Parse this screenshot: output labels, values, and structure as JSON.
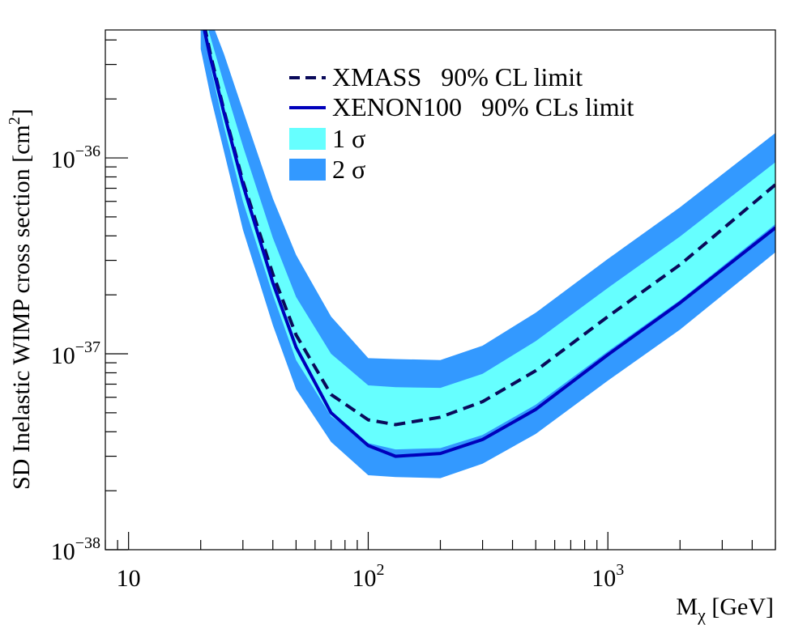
{
  "chart_data": {
    "type": "area",
    "xlabel": {
      "main": "M",
      "sub": "χ",
      "unit": "[GeV]"
    },
    "ylabel": {
      "main": "SD Inelastic WIMP cross section  [cm",
      "sup": "2",
      "close": "]"
    },
    "xscale": "log",
    "yscale": "log",
    "xlim": [
      8,
      5000
    ],
    "ylim": [
      1e-38,
      4.5e-36
    ],
    "x_ticks": [
      {
        "value": 10,
        "label": "10",
        "sup": ""
      },
      {
        "value": 100,
        "label": "10",
        "sup": "2"
      },
      {
        "value": 1000,
        "label": "10",
        "sup": "3"
      }
    ],
    "y_ticks": [
      {
        "value": 1e-38,
        "label": "10",
        "sup": "−38"
      },
      {
        "value": 1e-37,
        "label": "10",
        "sup": "−37"
      },
      {
        "value": 1e-36,
        "label": "10",
        "sup": "−36"
      }
    ],
    "bands": [
      {
        "name": "2 σ",
        "color": "#3399ff",
        "x": [
          20,
          22,
          25,
          30,
          40,
          50,
          70,
          100,
          130,
          200,
          300,
          500,
          1000,
          2000,
          5000
        ],
        "lower": [
          3.6e-36,
          2.05e-36,
          1.08e-36,
          4.3e-37,
          1.4e-37,
          6.6e-38,
          3.55e-38,
          2.4e-38,
          2.35e-38,
          2.32e-38,
          2.75e-38,
          3.9e-38,
          7.3e-38,
          1.33e-37,
          3.3e-37
        ],
        "upper": [
          6.2e-36,
          5.1e-36,
          3.4e-36,
          1.75e-36,
          6.2e-37,
          3.2e-37,
          1.55e-37,
          9.5e-38,
          9.4e-38,
          9.3e-38,
          1.1e-37,
          1.62e-37,
          3.05e-37,
          5.6e-37,
          1.34e-36
        ]
      },
      {
        "name": "1 σ",
        "color": "#66ffff",
        "x": [
          20,
          22,
          25,
          30,
          40,
          50,
          70,
          100,
          130,
          200,
          300,
          500,
          1000,
          2000,
          5000
        ],
        "lower": [
          5.4e-36,
          2.9e-36,
          1.45e-36,
          6e-37,
          2e-37,
          9.3e-38,
          4.8e-38,
          3.5e-38,
          3.25e-38,
          3.3e-38,
          3.85e-38,
          5.5e-38,
          1.03e-37,
          1.88e-37,
          4.6e-37
        ],
        "upper": [
          6.2e-36,
          4.1e-36,
          2.4e-36,
          1.15e-36,
          3.9e-37,
          1.95e-37,
          1e-37,
          6.9e-38,
          6.75e-38,
          6.7e-38,
          7.9e-38,
          1.16e-37,
          2.17e-37,
          3.97e-37,
          9.5e-37
        ]
      }
    ],
    "series": [
      {
        "name": "XMASS   90% CL limit",
        "style": "dashed",
        "color": "#0a0a5a",
        "x": [
          20,
          22,
          25,
          30,
          40,
          50,
          70,
          100,
          130,
          200,
          300,
          500,
          1000,
          2000,
          5000
        ],
        "y": [
          5.8e-36,
          3.35e-36,
          1.75e-36,
          7.6e-37,
          2.55e-37,
          1.25e-37,
          6.2e-38,
          4.6e-38,
          4.35e-38,
          4.75e-38,
          5.7e-38,
          8.2e-38,
          1.55e-37,
          2.85e-37,
          7.3e-37
        ]
      },
      {
        "name": "XENON100   90% CLs limit",
        "style": "solid",
        "color": "#0000bb",
        "x": [
          20,
          22,
          25,
          30,
          40,
          50,
          70,
          100,
          130,
          200,
          300,
          500,
          1000,
          2000,
          5000
        ],
        "y": [
          5.5e-36,
          3.2e-36,
          1.7e-36,
          7.3e-37,
          2.3e-37,
          1.08e-37,
          5e-38,
          3.4e-38,
          3e-38,
          3.1e-38,
          3.65e-38,
          5.2e-38,
          9.9e-38,
          1.82e-37,
          4.4e-37
        ]
      }
    ],
    "legend": {
      "position": "top-center",
      "entries": [
        {
          "label": "XMASS   90% CL limit",
          "kind": "dashed-line",
          "color": "#0a0a5a"
        },
        {
          "label": "XENON100   90% CLs limit",
          "kind": "solid-line",
          "color": "#0000bb"
        },
        {
          "label": "1 σ",
          "kind": "fill",
          "color": "#66ffff"
        },
        {
          "label": "2 σ",
          "kind": "fill",
          "color": "#3399ff"
        }
      ]
    }
  }
}
